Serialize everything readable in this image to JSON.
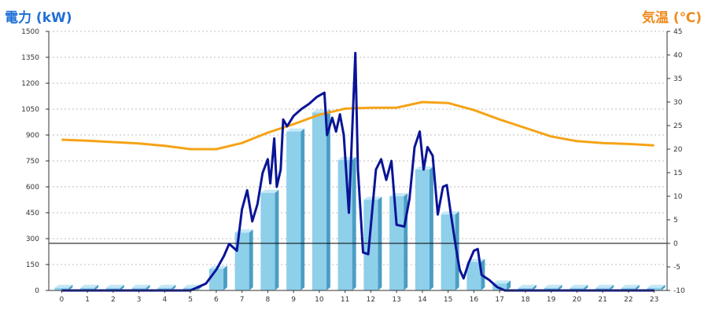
{
  "chart_data": {
    "type": "bar+line",
    "left_axis_title": "電力 (kW)",
    "right_axis_title": "気温 (℃)",
    "x": [
      "0",
      "1",
      "2",
      "3",
      "4",
      "5",
      "6",
      "7",
      "8",
      "9",
      "10",
      "11",
      "12",
      "13",
      "14",
      "15",
      "16",
      "17",
      "18",
      "19",
      "20",
      "21",
      "22",
      "23"
    ],
    "y_left": {
      "min": 0,
      "max": 1500,
      "ticks": [
        0,
        150,
        300,
        450,
        600,
        750,
        900,
        1050,
        1200,
        1350,
        1500
      ]
    },
    "y_right": {
      "min": -10,
      "max": 45,
      "ticks": [
        -10,
        -5,
        0,
        5,
        10,
        15,
        20,
        25,
        30,
        35,
        40,
        45
      ]
    },
    "grid": true,
    "hourly_power_bars": [
      15,
      15,
      15,
      15,
      15,
      15,
      125,
      335,
      565,
      920,
      1030,
      755,
      525,
      545,
      700,
      440,
      165,
      40,
      15,
      15,
      15,
      15,
      15,
      15
    ],
    "power_line": [
      [
        0,
        0
      ],
      [
        1,
        0
      ],
      [
        2,
        0
      ],
      [
        3,
        0
      ],
      [
        4,
        0
      ],
      [
        5,
        0
      ],
      [
        5.6,
        40
      ],
      [
        6,
        120
      ],
      [
        6.3,
        200
      ],
      [
        6.5,
        270
      ],
      [
        6.65,
        250
      ],
      [
        6.8,
        230
      ],
      [
        7,
        470
      ],
      [
        7.2,
        580
      ],
      [
        7.4,
        400
      ],
      [
        7.6,
        500
      ],
      [
        7.8,
        680
      ],
      [
        8,
        760
      ],
      [
        8.1,
        620
      ],
      [
        8.25,
        880
      ],
      [
        8.35,
        600
      ],
      [
        8.5,
        700
      ],
      [
        8.6,
        990
      ],
      [
        8.75,
        950
      ],
      [
        9,
        1010
      ],
      [
        9.3,
        1050
      ],
      [
        9.6,
        1080
      ],
      [
        9.9,
        1120
      ],
      [
        10.2,
        1145
      ],
      [
        10.3,
        900
      ],
      [
        10.5,
        1000
      ],
      [
        10.65,
        920
      ],
      [
        10.8,
        1020
      ],
      [
        10.95,
        900
      ],
      [
        11.15,
        450
      ],
      [
        11.4,
        1375
      ],
      [
        11.5,
        700
      ],
      [
        11.7,
        220
      ],
      [
        11.9,
        210
      ],
      [
        12.2,
        700
      ],
      [
        12.4,
        760
      ],
      [
        12.6,
        640
      ],
      [
        12.8,
        750
      ],
      [
        13,
        380
      ],
      [
        13.3,
        370
      ],
      [
        13.5,
        530
      ],
      [
        13.7,
        830
      ],
      [
        13.9,
        920
      ],
      [
        14.05,
        700
      ],
      [
        14.2,
        830
      ],
      [
        14.4,
        780
      ],
      [
        14.6,
        440
      ],
      [
        14.8,
        600
      ],
      [
        14.95,
        610
      ],
      [
        15.1,
        450
      ],
      [
        15.3,
        250
      ],
      [
        15.45,
        120
      ],
      [
        15.6,
        70
      ],
      [
        15.8,
        160
      ],
      [
        16,
        230
      ],
      [
        16.15,
        240
      ],
      [
        16.3,
        90
      ],
      [
        16.6,
        60
      ],
      [
        16.9,
        20
      ],
      [
        17.2,
        0
      ],
      [
        18,
        0
      ],
      [
        19,
        0
      ],
      [
        20,
        0
      ],
      [
        21,
        0
      ],
      [
        22,
        0
      ],
      [
        23,
        0
      ]
    ],
    "temperature_line": [
      [
        0,
        22
      ],
      [
        1,
        21.8
      ],
      [
        2,
        21.5
      ],
      [
        3,
        21.2
      ],
      [
        4,
        20.7
      ],
      [
        5,
        20
      ],
      [
        6,
        20
      ],
      [
        7,
        21.3
      ],
      [
        8,
        23.5
      ],
      [
        9,
        25.3
      ],
      [
        10,
        27.3
      ],
      [
        11,
        28.6
      ],
      [
        12,
        28.8
      ],
      [
        13,
        28.8
      ],
      [
        14,
        30
      ],
      [
        15,
        29.8
      ],
      [
        16,
        28.3
      ],
      [
        17,
        26.3
      ],
      [
        18,
        24.5
      ],
      [
        19,
        22.7
      ],
      [
        20,
        21.7
      ],
      [
        21,
        21.3
      ],
      [
        22,
        21.1
      ],
      [
        23,
        20.8
      ]
    ],
    "colors": {
      "bar_front": "#8ecfea",
      "bar_side": "#4a9ec4",
      "bar_top": "#c4e8f6",
      "power_line": "#0a1496",
      "temperature_line": "#f5a316",
      "zero_line": "#000000",
      "grid": "#bdbdbd",
      "left_title": "#1f6fd6",
      "right_title": "#f08a1c"
    }
  }
}
